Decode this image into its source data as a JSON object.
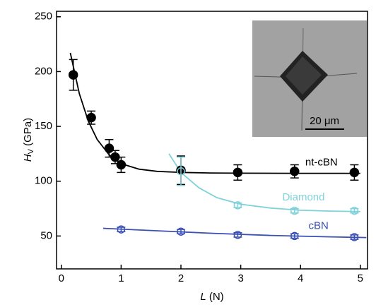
{
  "chart_data": {
    "type": "scatter",
    "ylabel": {
      "symbol": "H",
      "subscript": "V",
      "unit": "(GPa)"
    },
    "xlabel": {
      "symbol": "L",
      "unit": "(N)"
    },
    "xlim": [
      -0.08,
      5.12
    ],
    "xticks": [
      0,
      1,
      2,
      3,
      4,
      5
    ],
    "ylim": [
      20,
      255
    ],
    "yticks": [
      50,
      100,
      150,
      200,
      250
    ],
    "inset_label": "20 μm",
    "series": [
      {
        "name": "nt-cBN",
        "color": "#000000",
        "marker": "filled",
        "x": [
          0.2,
          0.5,
          0.8,
          0.9,
          1.0,
          2.0,
          2.95,
          3.9,
          4.9
        ],
        "values": [
          197,
          158,
          130,
          122,
          115,
          110,
          108,
          109,
          108
        ],
        "errors": [
          14,
          6,
          8,
          6,
          7,
          13,
          7,
          6,
          7
        ]
      },
      {
        "name": "Diamond",
        "color": "#80d2da",
        "marker": "open",
        "x": [
          2.0,
          2.95,
          3.9,
          4.9
        ],
        "values": [
          109,
          78,
          73,
          73
        ],
        "errors": [
          13,
          2,
          2,
          2
        ]
      },
      {
        "name": "cBN",
        "color": "#3a50b4",
        "marker": "open",
        "x": [
          1.0,
          2.0,
          2.95,
          3.9,
          4.9
        ],
        "values": [
          56,
          54,
          51,
          50,
          49
        ],
        "errors": [
          2,
          2,
          2,
          2,
          2
        ]
      }
    ],
    "fits": [
      {
        "color": "#000000",
        "x": [
          0.15,
          0.3,
          0.45,
          0.6,
          0.8,
          1.0,
          1.3,
          1.6,
          2.0,
          2.5,
          3.0,
          4.0,
          5.0
        ],
        "values": [
          217,
          180,
          155,
          138,
          124,
          116,
          111,
          109,
          108,
          107.5,
          107.3,
          107.2,
          107.2
        ]
      },
      {
        "color": "#80d2da",
        "x": [
          1.8,
          2.0,
          2.3,
          2.6,
          3.0,
          3.5,
          4.0,
          4.5,
          5.0
        ],
        "values": [
          125,
          108,
          94,
          85,
          79,
          75.5,
          73.5,
          72.7,
          72.3
        ]
      },
      {
        "color": "#3a50b4",
        "x": [
          0.7,
          1.5,
          2.5,
          3.5,
          4.5,
          5.1
        ],
        "values": [
          57,
          55,
          52.5,
          50.5,
          49.2,
          48.6
        ]
      }
    ]
  }
}
